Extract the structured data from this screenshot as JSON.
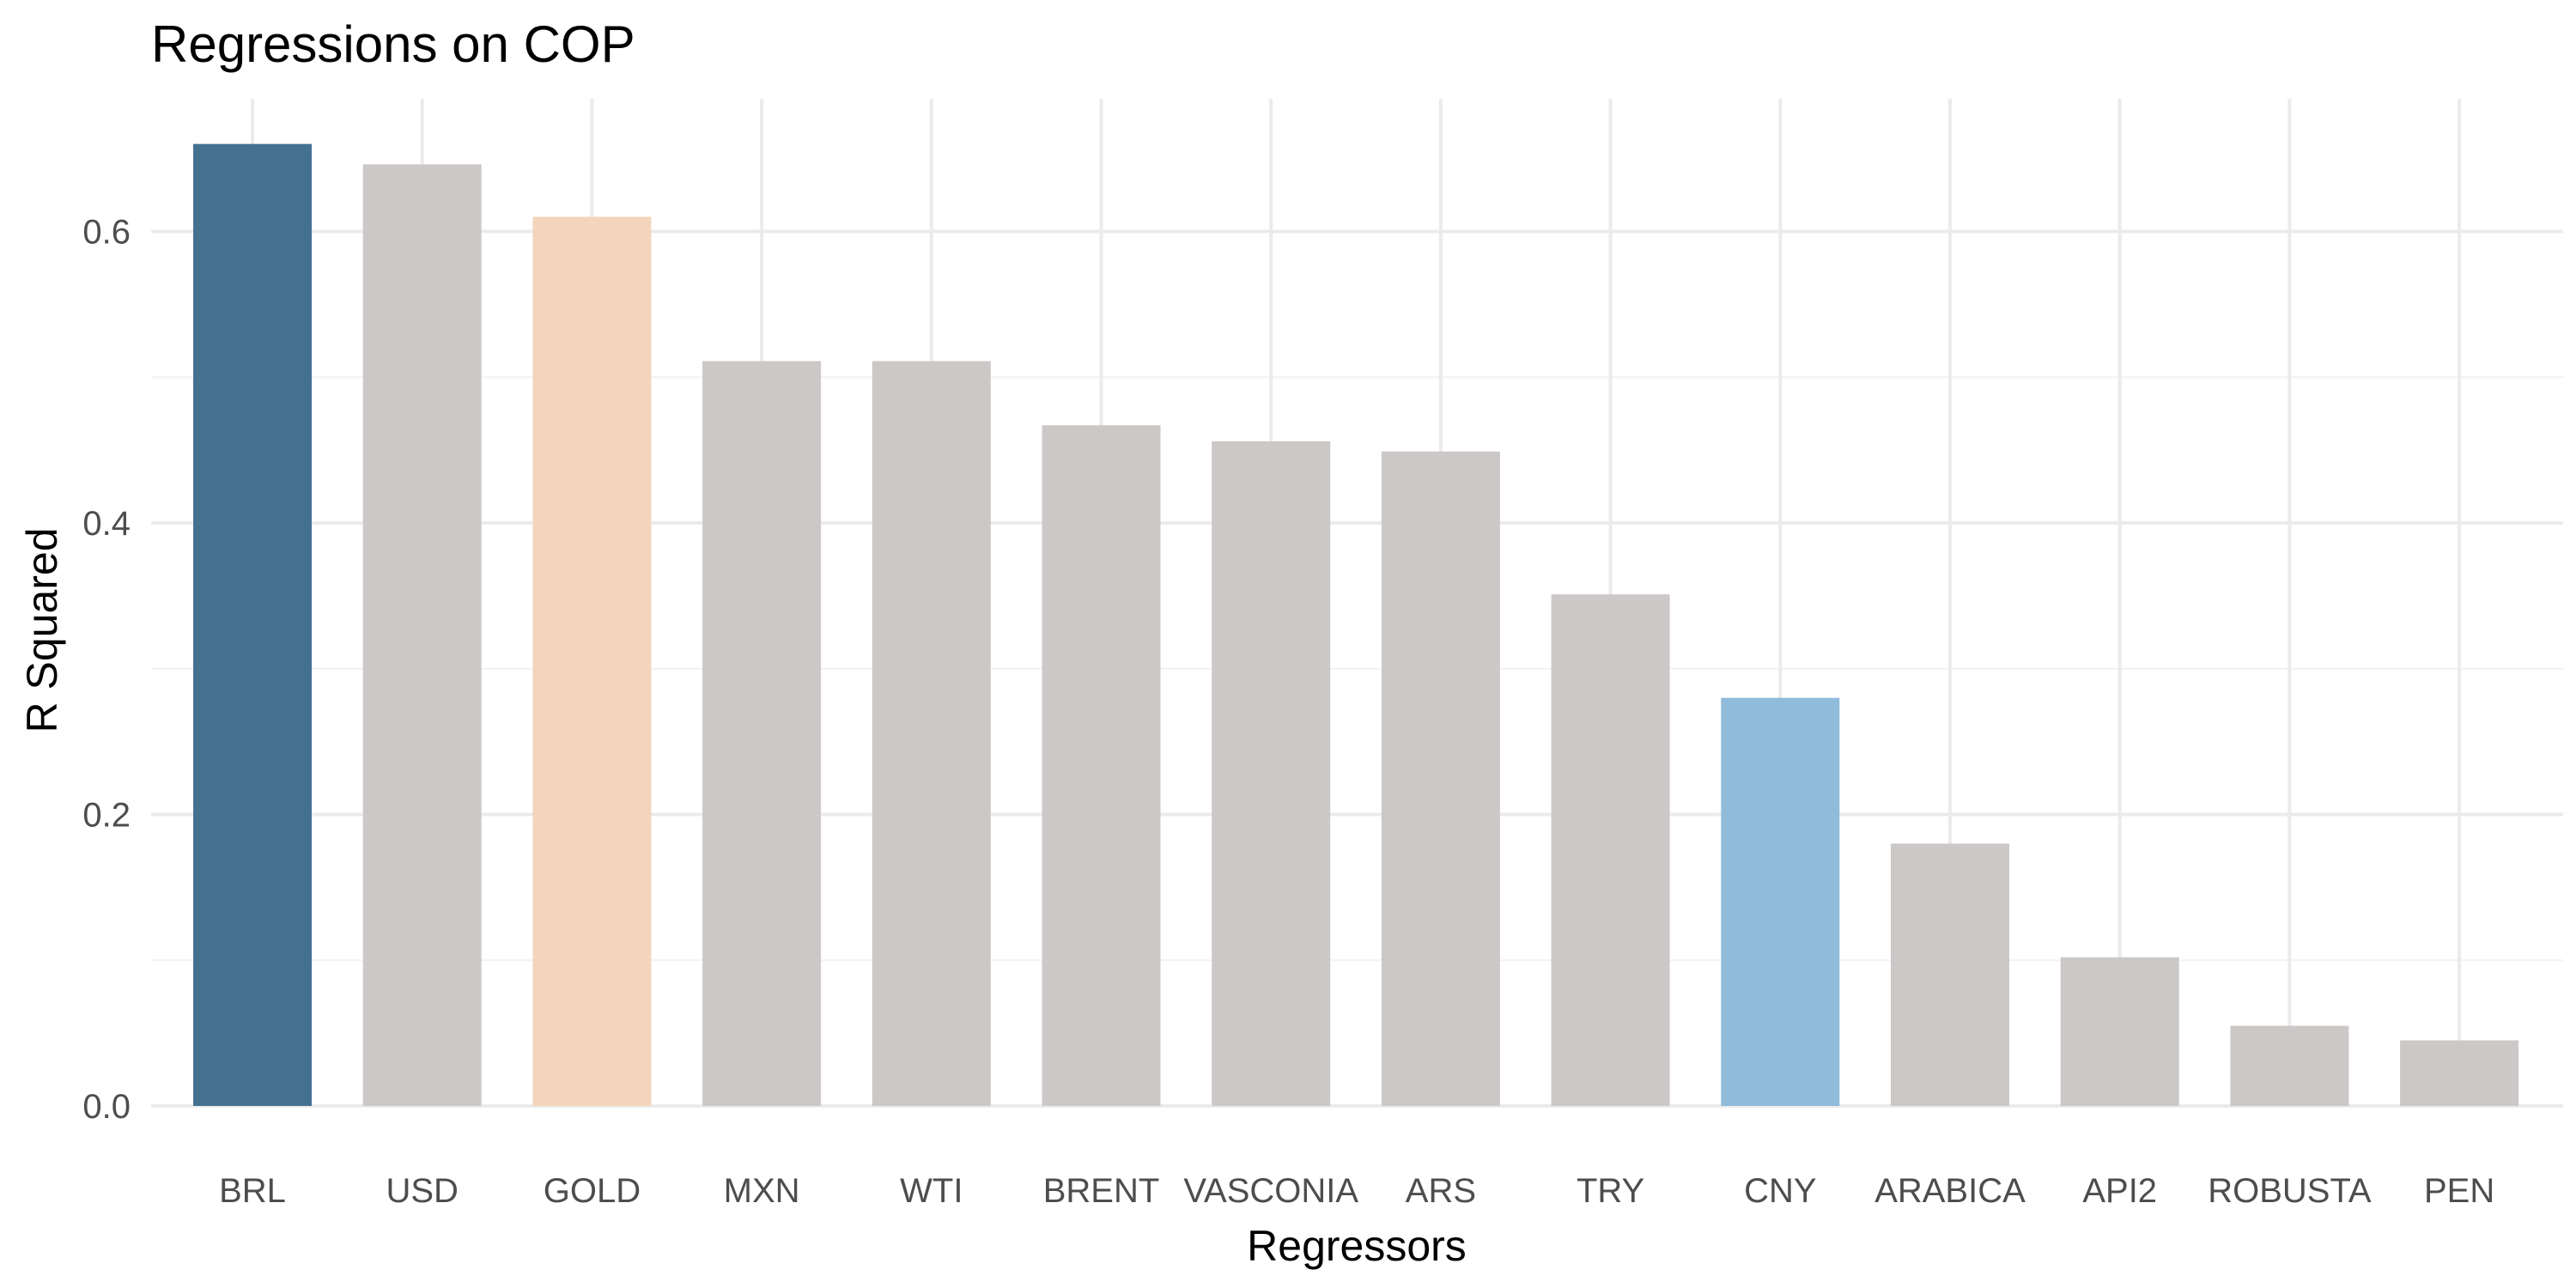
{
  "chart_data": {
    "type": "bar",
    "title": "Regressions on COP",
    "xlabel": "Regressors",
    "ylabel": "R Squared",
    "ylim": [
      0,
      0.69
    ],
    "yticks": [
      0.0,
      0.2,
      0.4,
      0.6
    ],
    "ytick_labels": [
      "0.0",
      "0.2",
      "0.4",
      "0.6"
    ],
    "grid": true,
    "legend": "none",
    "categories": [
      "BRL",
      "USD",
      "GOLD",
      "MXN",
      "WTI",
      "BRENT",
      "VASCONIA",
      "ARS",
      "TRY",
      "CNY",
      "ARABICA",
      "API2",
      "ROBUSTA",
      "PEN"
    ],
    "values": [
      0.66,
      0.646,
      0.61,
      0.511,
      0.511,
      0.467,
      0.456,
      0.449,
      0.351,
      0.28,
      0.18,
      0.102,
      0.055,
      0.045
    ],
    "colors": [
      "#457191",
      "#ccc8c7",
      "#f3d5bc",
      "#ccc8c7",
      "#ccc8c7",
      "#ccc8c7",
      "#ccc8c7",
      "#ccc8c7",
      "#ccc8c7",
      "#91bbdb",
      "#ccc8c7",
      "#ccc8c7",
      "#ccc8c7",
      "#ccc8c7"
    ]
  }
}
